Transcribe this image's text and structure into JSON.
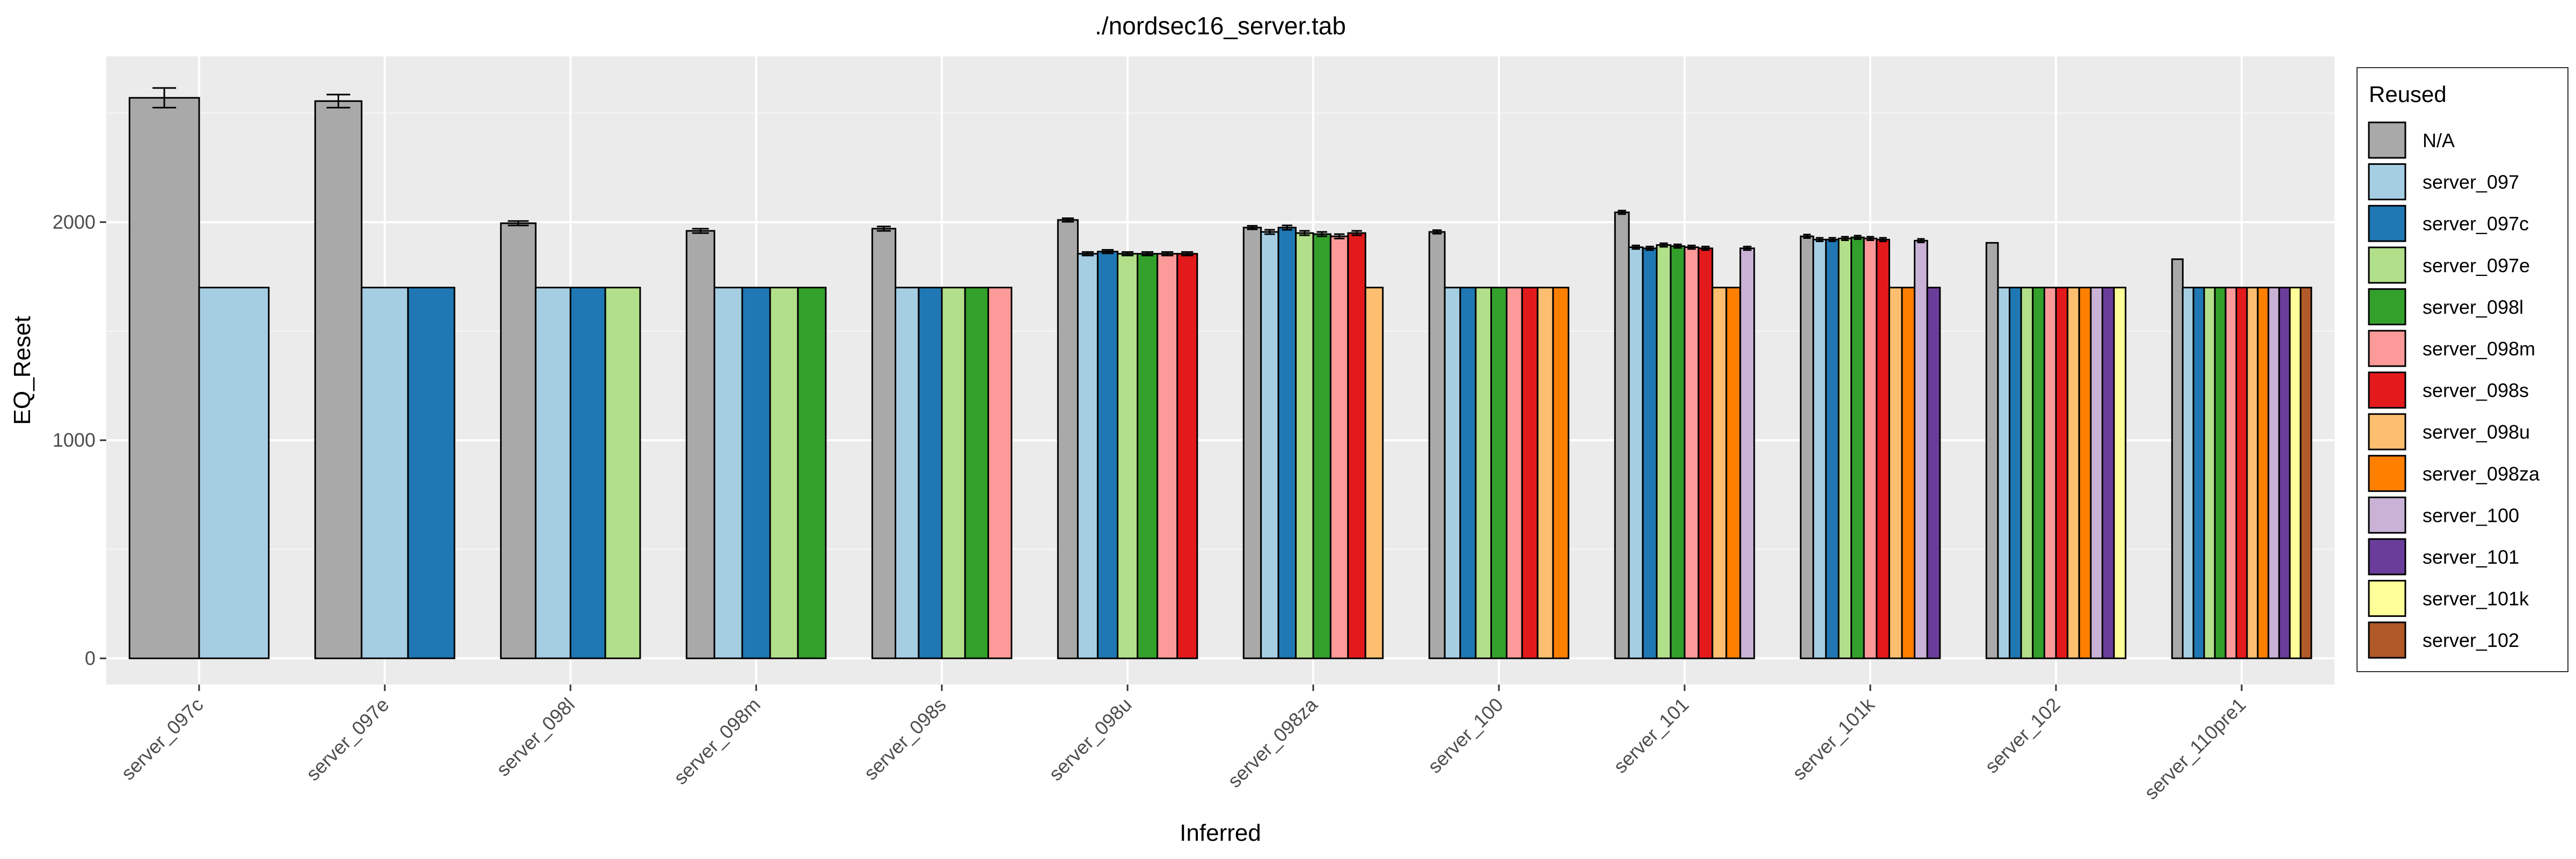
{
  "chart_data": {
    "type": "bar",
    "title": "./nordsec16_server.tab",
    "xlabel": "Inferred",
    "ylabel": "EQ_Reset",
    "ylim": [
      -120,
      2760
    ],
    "yticks": [
      0,
      1000,
      2000
    ],
    "legend_title": "Reused",
    "legend_position": "right",
    "grid": true,
    "colors": {
      "N/A": "#a9a9a9",
      "server_097": "#a6cee3",
      "server_097c": "#1f78b4",
      "server_097e": "#b2df8a",
      "server_098l": "#33a02c",
      "server_098m": "#fb9a99",
      "server_098s": "#e31a1c",
      "server_098u": "#fdbf6f",
      "server_098za": "#ff7f00",
      "server_100": "#cab2d6",
      "server_101": "#6a3d9a",
      "server_101k": "#ffff99",
      "server_102": "#b15928"
    },
    "legend": [
      "N/A",
      "server_097",
      "server_097c",
      "server_097e",
      "server_098l",
      "server_098m",
      "server_098s",
      "server_098u",
      "server_098za",
      "server_100",
      "server_101",
      "server_101k",
      "server_102"
    ],
    "groups": [
      {
        "category": "server_097c",
        "bars": [
          {
            "series": "N/A",
            "value": 2570,
            "err": 45
          },
          {
            "series": "server_097",
            "value": 1700
          }
        ]
      },
      {
        "category": "server_097e",
        "bars": [
          {
            "series": "N/A",
            "value": 2555,
            "err": 30
          },
          {
            "series": "server_097",
            "value": 1700
          },
          {
            "series": "server_097c",
            "value": 1700
          }
        ]
      },
      {
        "category": "server_098l",
        "bars": [
          {
            "series": "N/A",
            "value": 1995,
            "err": 10
          },
          {
            "series": "server_097",
            "value": 1700
          },
          {
            "series": "server_097c",
            "value": 1700
          },
          {
            "series": "server_097e",
            "value": 1700
          }
        ]
      },
      {
        "category": "server_098m",
        "bars": [
          {
            "series": "N/A",
            "value": 1960,
            "err": 10
          },
          {
            "series": "server_097",
            "value": 1700
          },
          {
            "series": "server_097c",
            "value": 1700
          },
          {
            "series": "server_097e",
            "value": 1700
          },
          {
            "series": "server_098l",
            "value": 1700
          }
        ]
      },
      {
        "category": "server_098s",
        "bars": [
          {
            "series": "N/A",
            "value": 1970,
            "err": 10
          },
          {
            "series": "server_097",
            "value": 1700
          },
          {
            "series": "server_097c",
            "value": 1700
          },
          {
            "series": "server_097e",
            "value": 1700
          },
          {
            "series": "server_098l",
            "value": 1700
          },
          {
            "series": "server_098m",
            "value": 1700
          }
        ]
      },
      {
        "category": "server_098u",
        "bars": [
          {
            "series": "N/A",
            "value": 2010,
            "err": 8
          },
          {
            "series": "server_097",
            "value": 1855,
            "err": 8
          },
          {
            "series": "server_097c",
            "value": 1865,
            "err": 8
          },
          {
            "series": "server_097e",
            "value": 1855,
            "err": 8
          },
          {
            "series": "server_098l",
            "value": 1855,
            "err": 8
          },
          {
            "series": "server_098m",
            "value": 1855,
            "err": 8
          },
          {
            "series": "server_098s",
            "value": 1855,
            "err": 8
          }
        ]
      },
      {
        "category": "server_098za",
        "bars": [
          {
            "series": "N/A",
            "value": 1975,
            "err": 8
          },
          {
            "series": "server_097",
            "value": 1955,
            "err": 10
          },
          {
            "series": "server_097c",
            "value": 1975,
            "err": 10
          },
          {
            "series": "server_097e",
            "value": 1950,
            "err": 10
          },
          {
            "series": "server_098l",
            "value": 1945,
            "err": 10
          },
          {
            "series": "server_098m",
            "value": 1935,
            "err": 10
          },
          {
            "series": "server_098s",
            "value": 1950,
            "err": 10
          },
          {
            "series": "server_098u",
            "value": 1700
          }
        ]
      },
      {
        "category": "server_100",
        "bars": [
          {
            "series": "N/A",
            "value": 1955,
            "err": 8
          },
          {
            "series": "server_097",
            "value": 1700
          },
          {
            "series": "server_097c",
            "value": 1700
          },
          {
            "series": "server_097e",
            "value": 1700
          },
          {
            "series": "server_098l",
            "value": 1700
          },
          {
            "series": "server_098m",
            "value": 1700
          },
          {
            "series": "server_098s",
            "value": 1700
          },
          {
            "series": "server_098u",
            "value": 1700
          },
          {
            "series": "server_098za",
            "value": 1700
          }
        ]
      },
      {
        "category": "server_101",
        "bars": [
          {
            "series": "N/A",
            "value": 2045,
            "err": 8
          },
          {
            "series": "server_097",
            "value": 1885,
            "err": 8
          },
          {
            "series": "server_097c",
            "value": 1880,
            "err": 8
          },
          {
            "series": "server_097e",
            "value": 1895,
            "err": 8
          },
          {
            "series": "server_098l",
            "value": 1890,
            "err": 8
          },
          {
            "series": "server_098m",
            "value": 1885,
            "err": 8
          },
          {
            "series": "server_098s",
            "value": 1880,
            "err": 8
          },
          {
            "series": "server_098u",
            "value": 1700
          },
          {
            "series": "server_098za",
            "value": 1700
          },
          {
            "series": "server_100",
            "value": 1880,
            "err": 8
          }
        ]
      },
      {
        "category": "server_101k",
        "bars": [
          {
            "series": "N/A",
            "value": 1935,
            "err": 8
          },
          {
            "series": "server_097",
            "value": 1920,
            "err": 8
          },
          {
            "series": "server_097c",
            "value": 1920,
            "err": 8
          },
          {
            "series": "server_097e",
            "value": 1925,
            "err": 8
          },
          {
            "series": "server_098l",
            "value": 1930,
            "err": 8
          },
          {
            "series": "server_098m",
            "value": 1925,
            "err": 8
          },
          {
            "series": "server_098s",
            "value": 1920,
            "err": 8
          },
          {
            "series": "server_098u",
            "value": 1700
          },
          {
            "series": "server_098za",
            "value": 1700
          },
          {
            "series": "server_100",
            "value": 1915,
            "err": 8
          },
          {
            "series": "server_101",
            "value": 1700
          }
        ]
      },
      {
        "category": "server_102",
        "bars": [
          {
            "series": "N/A",
            "value": 1905
          },
          {
            "series": "server_097",
            "value": 1700
          },
          {
            "series": "server_097c",
            "value": 1700
          },
          {
            "series": "server_097e",
            "value": 1700
          },
          {
            "series": "server_098l",
            "value": 1700
          },
          {
            "series": "server_098m",
            "value": 1700
          },
          {
            "series": "server_098s",
            "value": 1700
          },
          {
            "series": "server_098u",
            "value": 1700
          },
          {
            "series": "server_098za",
            "value": 1700
          },
          {
            "series": "server_100",
            "value": 1700
          },
          {
            "series": "server_101",
            "value": 1700
          },
          {
            "series": "server_101k",
            "value": 1700
          }
        ]
      },
      {
        "category": "server_110pre1",
        "bars": [
          {
            "series": "N/A",
            "value": 1830
          },
          {
            "series": "server_097",
            "value": 1700
          },
          {
            "series": "server_097c",
            "value": 1700
          },
          {
            "series": "server_097e",
            "value": 1700
          },
          {
            "series": "server_098l",
            "value": 1700
          },
          {
            "series": "server_098m",
            "value": 1700
          },
          {
            "series": "server_098s",
            "value": 1700
          },
          {
            "series": "server_098u",
            "value": 1700
          },
          {
            "series": "server_098za",
            "value": 1700
          },
          {
            "series": "server_100",
            "value": 1700
          },
          {
            "series": "server_101",
            "value": 1700
          },
          {
            "series": "server_101k",
            "value": 1700
          },
          {
            "series": "server_102",
            "value": 1700
          }
        ]
      }
    ]
  }
}
